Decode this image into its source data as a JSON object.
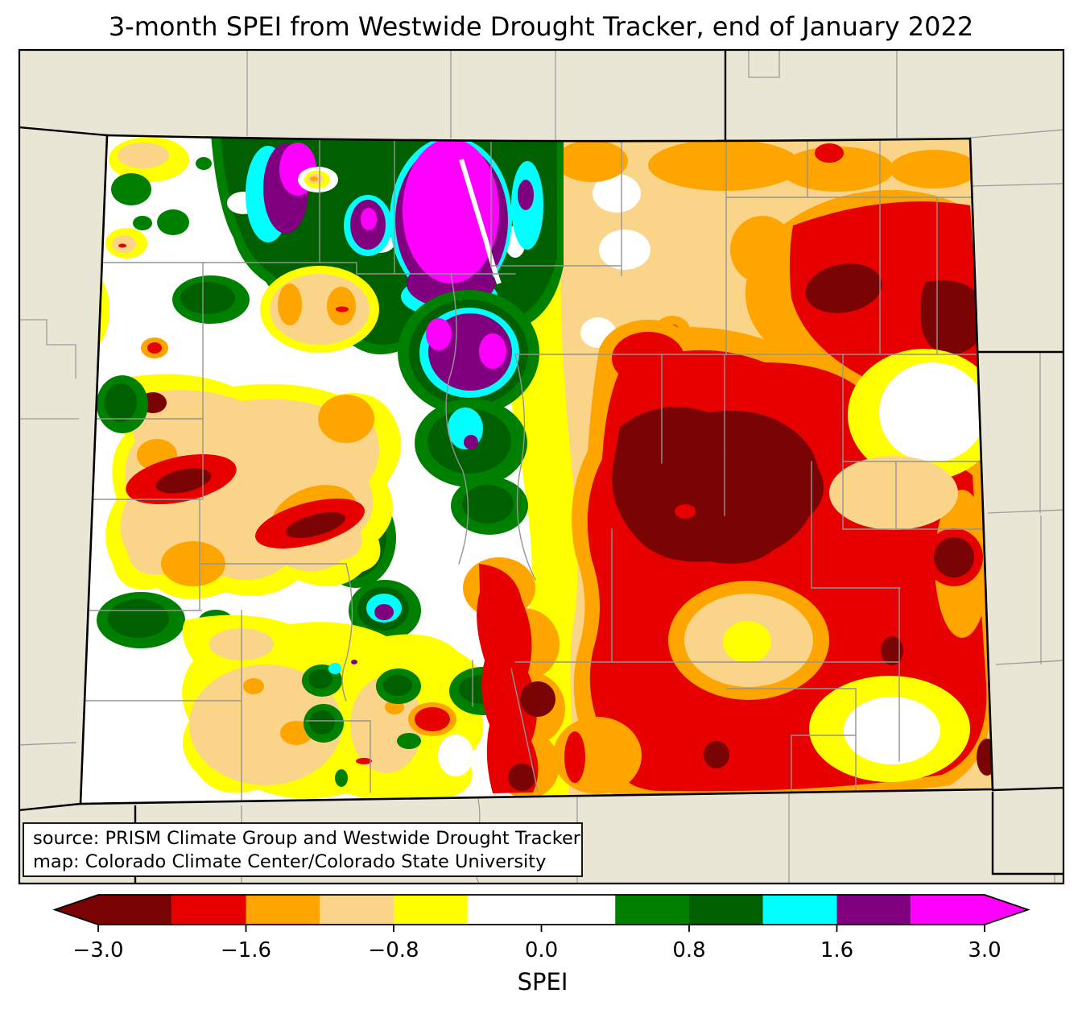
{
  "title": "3-month SPEI from Westwide Drought Tracker, end of January 2022",
  "map": {
    "source_box": {
      "line1": "source: PRISM Climate Group and Westwide Drought Tracker",
      "line2": "map: Colorado Climate Center/Colorado State University"
    }
  },
  "colorbar": {
    "label": "SPEI",
    "bin_edges": [
      -3.0,
      -2.0,
      -1.6,
      -1.3,
      -0.8,
      -0.5,
      0.5,
      0.8,
      1.3,
      1.6,
      2.0,
      3.0
    ],
    "segments": [
      {
        "color": "#7a0403",
        "from": -3.0,
        "to": -2.0,
        "units": 1
      },
      {
        "color": "#e60000",
        "from": -2.0,
        "to": -1.6,
        "units": 1
      },
      {
        "color": "#ffa500",
        "from": -1.6,
        "to": -1.3,
        "units": 1
      },
      {
        "color": "#fad488",
        "from": -1.3,
        "to": -0.8,
        "units": 1
      },
      {
        "color": "#ffff00",
        "from": -0.8,
        "to": -0.5,
        "units": 1
      },
      {
        "color": "#ffffff",
        "from": -0.5,
        "to": 0.5,
        "units": 2
      },
      {
        "color": "#008000",
        "from": 0.5,
        "to": 0.8,
        "units": 1
      },
      {
        "color": "#006000",
        "from": 0.8,
        "to": 1.3,
        "units": 1
      },
      {
        "color": "#00ffff",
        "from": 1.3,
        "to": 1.6,
        "units": 1
      },
      {
        "color": "#800080",
        "from": 1.6,
        "to": 2.0,
        "units": 1
      },
      {
        "color": "#ff00ff",
        "from": 2.0,
        "to": 3.0,
        "units": 1
      }
    ],
    "arrow_colors": {
      "left": "#7a0403",
      "right": "#ff00ff"
    },
    "ticks": [
      {
        "label": "−3.0",
        "unit": 0
      },
      {
        "label": "−1.6",
        "unit": 2
      },
      {
        "label": "−0.8",
        "unit": 4
      },
      {
        "label": "0.0",
        "unit": 6
      },
      {
        "label": "0.8",
        "unit": 8
      },
      {
        "label": "1.6",
        "unit": 10
      },
      {
        "label": "3.0",
        "unit": 12
      }
    ],
    "units_total": 12
  },
  "palette": {
    "maroon": "#7a0403",
    "red": "#e60000",
    "orange": "#ffa500",
    "tan": "#fad488",
    "yellow": "#ffff00",
    "white": "#ffffff",
    "green": "#008000",
    "darkgreen": "#006000",
    "cyan": "#00ffff",
    "purple": "#800080",
    "magenta": "#ff00ff",
    "background": "#e9e6d6",
    "county_line": "#949494",
    "state_line": "#000000"
  }
}
